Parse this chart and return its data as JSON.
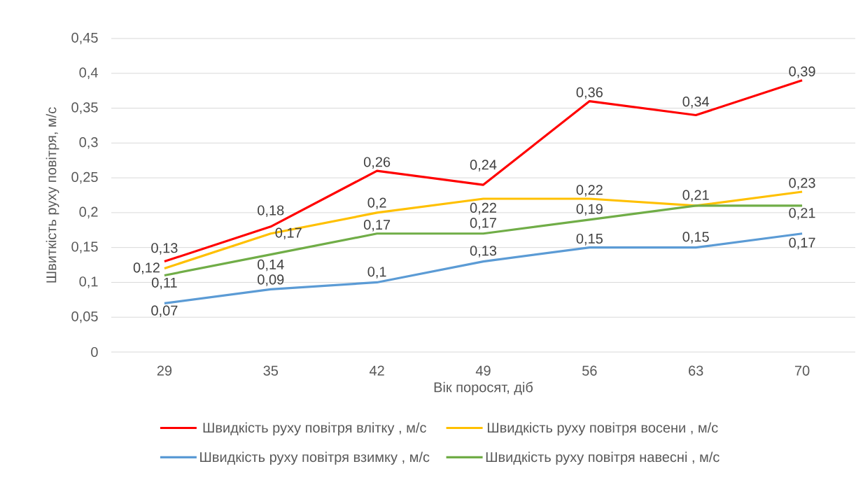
{
  "chart_data": {
    "type": "line",
    "xlabel": "Вік поросят, діб",
    "ylabel": "Швиткість руху повітря, м/с",
    "categories": [
      "29",
      "35",
      "42",
      "49",
      "56",
      "63",
      "70"
    ],
    "ylim": [
      0,
      0.45
    ],
    "yticks": [
      0,
      {
        "value": 0.05,
        "label": "0,05"
      },
      {
        "value": 0.1,
        "label": "0,1"
      },
      {
        "value": 0.15,
        "label": "0,15"
      },
      {
        "value": 0.2,
        "label": "0,2"
      },
      {
        "value": 0.25,
        "label": "0,25"
      },
      {
        "value": 0.3,
        "label": "0,3"
      },
      {
        "value": 0.35,
        "label": "0,35"
      },
      {
        "value": 0.4,
        "label": "0,4"
      },
      {
        "value": 0.45,
        "label": "0,45"
      }
    ],
    "grid": "y",
    "legend": "bottom",
    "marker": "none",
    "line_style": "solid",
    "series": [
      {
        "name": "Швидкість руху повітря влітку , м/с",
        "color": "#ff0000",
        "values": [
          0.13,
          0.18,
          0.26,
          0.24,
          0.36,
          0.34,
          0.39
        ],
        "value_labels": [
          "0,13",
          "0,18",
          "0,26",
          "0,24",
          "0,36",
          "0,34",
          "0,39"
        ]
      },
      {
        "name": "Швидкість руху повітря восени , м/с",
        "color": "#ffc000",
        "values": [
          0.12,
          0.17,
          0.2,
          0.22,
          0.22,
          0.21,
          0.23
        ],
        "value_labels": [
          "0,12",
          "0,17",
          "0,2",
          "0,22",
          "0,22",
          "0,21",
          "0,23"
        ]
      },
      {
        "name": "Швидкість руху повітря взимку , м/с",
        "color": "#5b9bd5",
        "values": [
          0.07,
          0.09,
          0.1,
          0.13,
          0.15,
          0.15,
          0.17
        ],
        "value_labels": [
          "0,07",
          "0,09",
          "0,1",
          "0,13",
          "0,15",
          "0,15",
          "0,17"
        ]
      },
      {
        "name": "Швидкість руху повітря навесні , м/с",
        "color": "#70ad47",
        "values": [
          0.11,
          0.14,
          0.17,
          0.17,
          0.19,
          0.21,
          0.21
        ],
        "value_labels": [
          "0,11",
          "0,14",
          "0,17",
          "0,17",
          "0,19",
          null,
          "0,21"
        ]
      }
    ]
  }
}
